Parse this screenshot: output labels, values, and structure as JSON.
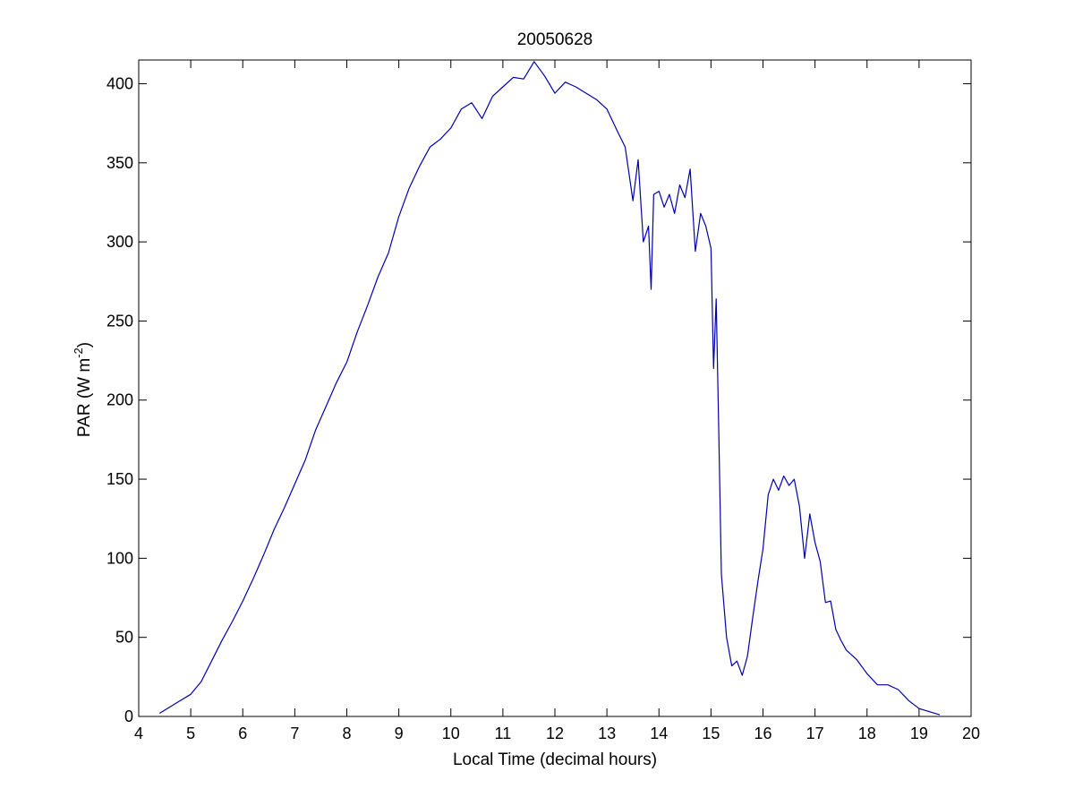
{
  "chart_data": {
    "type": "line",
    "title": "20050628",
    "xlabel": "Local Time (decimal hours)",
    "ylabel": {
      "main": "PAR (W m",
      "superscript": "-2",
      "close": ")"
    },
    "xlim": [
      4,
      20
    ],
    "ylim": [
      0,
      415
    ],
    "xticks": [
      4,
      5,
      6,
      7,
      8,
      9,
      10,
      11,
      12,
      13,
      14,
      15,
      16,
      17,
      18,
      19,
      20
    ],
    "yticks": [
      0,
      50,
      100,
      150,
      200,
      250,
      300,
      350,
      400
    ],
    "grid": false,
    "legend": "none",
    "line_color": "#0000aa",
    "series": [
      {
        "x": [
          4.4,
          4.6,
          4.8,
          5.0,
          5.2,
          5.4,
          5.6,
          5.8,
          6.0,
          6.2,
          6.4,
          6.6,
          6.8,
          7.0,
          7.2,
          7.4,
          7.6,
          7.8,
          8.0,
          8.2,
          8.4,
          8.6,
          8.8,
          9.0,
          9.2,
          9.4,
          9.6,
          9.8,
          10.0,
          10.2,
          10.4,
          10.6,
          10.8,
          11.0,
          11.2,
          11.4,
          11.6,
          11.8,
          12.0,
          12.2,
          12.4,
          12.6,
          12.8,
          13.0,
          13.2,
          13.35,
          13.5,
          13.6,
          13.7,
          13.8,
          13.85,
          13.9,
          14.0,
          14.1,
          14.2,
          14.3,
          14.4,
          14.5,
          14.6,
          14.7,
          14.8,
          14.9,
          15.0,
          15.05,
          15.1,
          15.15,
          15.2,
          15.3,
          15.4,
          15.5,
          15.6,
          15.7,
          15.8,
          15.9,
          16.0,
          16.1,
          16.2,
          16.3,
          16.4,
          16.5,
          16.6,
          16.7,
          16.8,
          16.9,
          17.0,
          17.1,
          17.2,
          17.3,
          17.4,
          17.5,
          17.6,
          17.8,
          18.0,
          18.2,
          18.4,
          18.6,
          18.8,
          19.0,
          19.2,
          19.4
        ],
        "y": [
          2,
          6,
          10,
          14,
          22,
          35,
          48,
          60,
          73,
          87,
          102,
          118,
          132,
          147,
          162,
          181,
          196,
          211,
          224,
          243,
          260,
          278,
          293,
          316,
          334,
          348,
          360,
          365,
          372,
          384,
          388,
          378,
          392,
          398,
          404,
          403,
          414,
          405,
          394,
          401,
          398,
          394,
          390,
          384,
          370,
          360,
          326,
          352,
          300,
          310,
          270,
          330,
          332,
          322,
          330,
          318,
          336,
          328,
          346,
          294,
          318,
          310,
          296,
          220,
          264,
          180,
          90,
          50,
          32,
          35,
          26,
          38,
          62,
          85,
          106,
          140,
          150,
          143,
          152,
          146,
          150,
          133,
          100,
          128,
          110,
          98,
          72,
          73,
          55,
          48,
          42,
          36,
          27,
          20,
          20,
          17,
          10,
          5,
          3,
          1
        ]
      }
    ]
  }
}
